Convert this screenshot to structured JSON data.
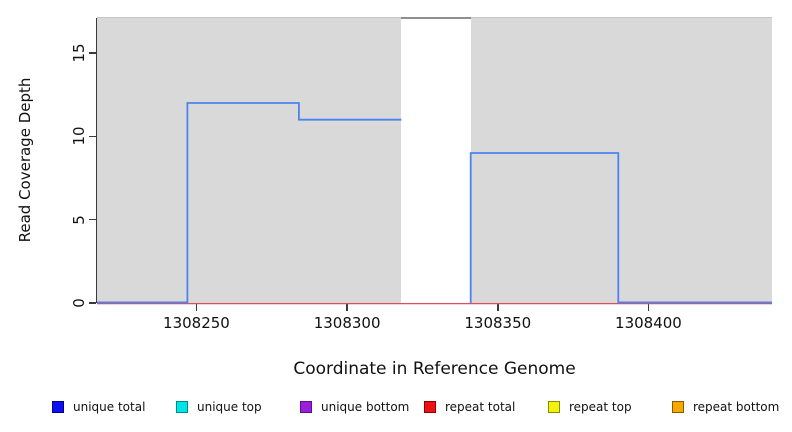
{
  "figure": {
    "background_color": "#ffffff"
  },
  "chart_data": {
    "type": "line",
    "subtype": "step-coverage",
    "title": "",
    "xlabel": "Coordinate in Reference Genome",
    "ylabel": "Read Coverage Depth",
    "xlim": [
      1308217,
      1308441
    ],
    "ylim": [
      0,
      17.1
    ],
    "x_ticks": [
      1308250,
      1308300,
      1308350,
      1308400
    ],
    "x_tick_labels": [
      "1308250",
      "1308300",
      "1308350",
      "1308400"
    ],
    "y_ticks": [
      0,
      5,
      10,
      15
    ],
    "y_tick_labels": [
      "0",
      "5",
      "10",
      "15"
    ],
    "grid": "off",
    "plot_bg_color": "#d9d9d9",
    "plot_top_border_color": "#c6c6c6",
    "axis_color": "#3a3a3a",
    "masked_region": {
      "x_start": 1308318,
      "x_end": 1308341,
      "color": "#ffffff",
      "top_border_color": "#8e8e8e"
    },
    "series": [
      {
        "name": "repeat total",
        "line_color": "#d94f5c",
        "line_width": 1.3,
        "segments": [
          {
            "x_start": 1308217,
            "x_end": 1308441,
            "y": 0
          }
        ]
      },
      {
        "name": "unique total",
        "line_color": "#4c84ee",
        "line_width": 1.8,
        "segments": [
          {
            "x_start": 1308217,
            "x_end": 1308247,
            "y": 0
          },
          {
            "x_start": 1308247,
            "x_end": 1308284,
            "y": 12
          },
          {
            "x_start": 1308284,
            "x_end": 1308318,
            "y": 11
          },
          {
            "x_start": 1308341,
            "x_end": 1308390,
            "y": 9
          },
          {
            "x_start": 1308390,
            "x_end": 1308441,
            "y": 0
          }
        ]
      }
    ],
    "legend": {
      "position": "bottom",
      "items": [
        {
          "label": "unique total",
          "fill": "#0f0fee",
          "border": "#00008b"
        },
        {
          "label": "unique top",
          "fill": "#00e5e5",
          "border": "#008b8b"
        },
        {
          "label": "unique bottom",
          "fill": "#9b1fd9",
          "border": "#5e0f8e"
        },
        {
          "label": "repeat total",
          "fill": "#ee1111",
          "border": "#8b0000"
        },
        {
          "label": "repeat top",
          "fill": "#f2f20a",
          "border": "#8b8b00"
        },
        {
          "label": "repeat bottom",
          "fill": "#f5a800",
          "border": "#8b5a00"
        }
      ]
    }
  }
}
